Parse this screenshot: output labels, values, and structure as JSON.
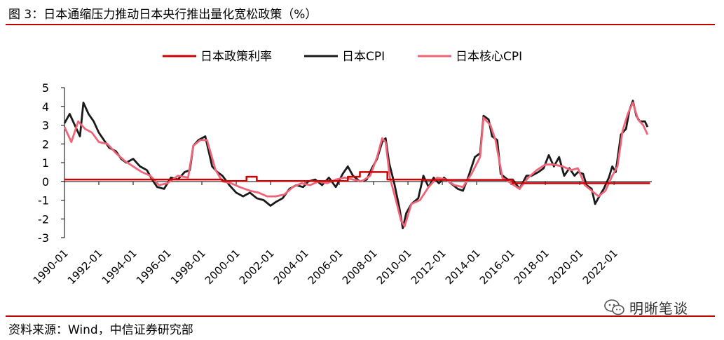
{
  "header": {
    "title": "图 3：日本通缩压力推动日本央行推出量化宽松政策（%）"
  },
  "footer": {
    "source": "资料来源：Wind，中信证券研究部",
    "logo_text": "明晰笔谈",
    "logo_icon": "wechat-icon"
  },
  "colors": {
    "policy": "#cc0000",
    "cpi": "#1a1a1a",
    "core": "#f06478",
    "accent": "#c00000"
  },
  "chart_data": {
    "type": "line",
    "title": "日本通缩压力推动日本央行推出量化宽松政策（%）",
    "xlabel": "",
    "ylabel": "",
    "ylim": [
      -3,
      5
    ],
    "yticks": [
      "5",
      "4",
      "3",
      "2",
      "1",
      "0",
      "-1",
      "-2",
      "-3"
    ],
    "xlim": [
      1990.0,
      2024.2
    ],
    "xticks": [
      "1990-01",
      "1992-01",
      "1994-01",
      "1996-01",
      "1998-01",
      "2000-01",
      "2002-01",
      "2004-01",
      "2006-01",
      "2008-01",
      "2010-01",
      "2012-01",
      "2014-01",
      "2016-01",
      "2018-01",
      "2020-01",
      "2022-01"
    ],
    "legend_position": "top",
    "series": [
      {
        "name": "日本政策利率",
        "key": "policy",
        "x": [
          1990.0,
          1999.2,
          1999.2,
          2000.6,
          2000.6,
          2001.2,
          2001.2,
          2006.5,
          2006.5,
          2007.2,
          2007.2,
          2008.8,
          2008.8,
          2010.8,
          2010.8,
          2016.1,
          2016.1,
          2024.1
        ],
        "y": [
          0.1,
          0.1,
          0.02,
          0.02,
          0.25,
          0.25,
          0.02,
          0.02,
          0.25,
          0.25,
          0.5,
          0.5,
          0.1,
          0.1,
          0.08,
          0.08,
          -0.1,
          -0.1
        ]
      },
      {
        "name": "日本CPI",
        "key": "cpi",
        "x": [
          1990.0,
          1990.3,
          1990.6,
          1990.9,
          1991.1,
          1991.4,
          1991.7,
          1992.0,
          1992.3,
          1992.6,
          1993.0,
          1993.3,
          1993.6,
          1994.0,
          1994.4,
          1994.8,
          1995.1,
          1995.4,
          1995.8,
          1996.2,
          1996.6,
          1997.0,
          1997.3,
          1997.5,
          1997.8,
          1998.2,
          1998.6,
          1998.9,
          1999.2,
          1999.6,
          2000.0,
          2000.4,
          2000.8,
          2001.2,
          2001.6,
          2002.0,
          2002.3,
          2002.7,
          2003.1,
          2003.5,
          2003.9,
          2004.2,
          2004.6,
          2005.0,
          2005.4,
          2005.8,
          2006.2,
          2006.5,
          2006.8,
          2007.2,
          2007.6,
          2007.9,
          2008.2,
          2008.5,
          2008.7,
          2008.9,
          2009.2,
          2009.5,
          2009.7,
          2009.9,
          2010.2,
          2010.6,
          2010.9,
          2011.2,
          2011.5,
          2011.8,
          2012.1,
          2012.5,
          2012.9,
          2013.2,
          2013.5,
          2013.9,
          2014.2,
          2014.4,
          2014.7,
          2014.9,
          2015.2,
          2015.4,
          2015.8,
          2016.1,
          2016.5,
          2016.9,
          2017.2,
          2017.6,
          2017.9,
          2018.2,
          2018.5,
          2018.8,
          2019.1,
          2019.4,
          2019.7,
          2019.9,
          2020.2,
          2020.4,
          2020.7,
          2020.9,
          2021.2,
          2021.4,
          2021.7,
          2021.9,
          2022.1,
          2022.4,
          2022.7,
          2022.9,
          2023.1,
          2023.3,
          2023.5,
          2023.8,
          2023.95
        ],
        "y": [
          3.1,
          3.6,
          3.0,
          2.4,
          4.2,
          3.6,
          3.2,
          2.6,
          2.2,
          1.8,
          1.6,
          1.2,
          1.0,
          1.2,
          0.8,
          0.6,
          0.1,
          -0.3,
          -0.4,
          0.2,
          0.1,
          0.5,
          0.6,
          1.9,
          2.2,
          2.4,
          0.8,
          0.5,
          0.3,
          -0.2,
          -0.6,
          -0.8,
          -0.6,
          -0.9,
          -1.0,
          -1.3,
          -1.1,
          -0.9,
          -0.4,
          -0.2,
          -0.3,
          0.0,
          0.1,
          -0.2,
          0.2,
          -0.3,
          0.4,
          0.8,
          0.3,
          0.0,
          0.1,
          0.7,
          1.2,
          2.1,
          2.3,
          1.0,
          -0.1,
          -1.4,
          -2.5,
          -1.7,
          -1.2,
          -0.9,
          0.3,
          -0.3,
          0.2,
          -0.1,
          0.2,
          -0.1,
          -0.4,
          -0.5,
          0.2,
          1.3,
          1.5,
          3.5,
          3.3,
          2.4,
          2.2,
          0.4,
          0.1,
          0.1,
          -0.4,
          0.3,
          0.3,
          0.5,
          0.7,
          1.4,
          0.8,
          1.3,
          0.3,
          0.7,
          0.3,
          0.5,
          0.4,
          -0.2,
          -0.4,
          -1.2,
          -0.7,
          -0.4,
          0.2,
          0.8,
          0.5,
          2.5,
          2.8,
          3.8,
          4.3,
          3.5,
          3.2,
          3.2,
          2.9
        ]
      },
      {
        "name": "日本核心CPI",
        "key": "core",
        "x": [
          1990.0,
          1990.4,
          1990.8,
          1991.2,
          1991.6,
          1992.0,
          1992.5,
          1993.0,
          1993.5,
          1994.0,
          1994.5,
          1995.0,
          1995.5,
          1996.0,
          1996.6,
          1997.2,
          1997.5,
          1997.9,
          1998.3,
          1998.8,
          1999.2,
          1999.7,
          2000.2,
          2000.8,
          2001.3,
          2001.8,
          2002.3,
          2002.8,
          2003.3,
          2003.8,
          2004.3,
          2004.8,
          2005.3,
          2005.8,
          2006.3,
          2006.8,
          2007.3,
          2007.8,
          2008.2,
          2008.5,
          2008.7,
          2008.95,
          2009.3,
          2009.6,
          2009.8,
          2010.2,
          2010.7,
          2011.2,
          2011.7,
          2012.2,
          2012.7,
          2013.2,
          2013.7,
          2014.2,
          2014.4,
          2014.8,
          2015.1,
          2015.5,
          2016.0,
          2016.5,
          2017.0,
          2017.5,
          2018.0,
          2018.5,
          2019.0,
          2019.5,
          2019.9,
          2020.3,
          2020.7,
          2021.1,
          2021.5,
          2021.9,
          2022.2,
          2022.5,
          2022.8,
          2023.1,
          2023.4,
          2023.7,
          2023.95
        ],
        "y": [
          2.9,
          2.1,
          3.2,
          2.8,
          2.6,
          2.1,
          2.0,
          1.5,
          1.1,
          0.8,
          0.5,
          0.3,
          -0.2,
          -0.1,
          0.3,
          0.2,
          1.9,
          2.2,
          2.2,
          0.6,
          0.0,
          -0.1,
          -0.3,
          -0.5,
          -0.6,
          -0.8,
          -0.8,
          -0.7,
          -0.3,
          -0.1,
          -0.2,
          0.0,
          -0.1,
          0.1,
          0.2,
          0.1,
          0.0,
          0.3,
          1.3,
          2.3,
          2.1,
          0.2,
          -1.0,
          -2.1,
          -2.4,
          -1.2,
          -1.0,
          -0.3,
          0.2,
          0.1,
          -0.2,
          -0.3,
          0.4,
          1.3,
          3.4,
          3.0,
          2.2,
          0.2,
          -0.1,
          -0.4,
          0.2,
          0.6,
          0.9,
          0.9,
          0.8,
          0.6,
          0.7,
          -0.2,
          -0.5,
          -0.8,
          -0.5,
          0.3,
          0.8,
          2.7,
          3.6,
          4.2,
          3.3,
          3.0,
          2.5
        ]
      }
    ]
  }
}
